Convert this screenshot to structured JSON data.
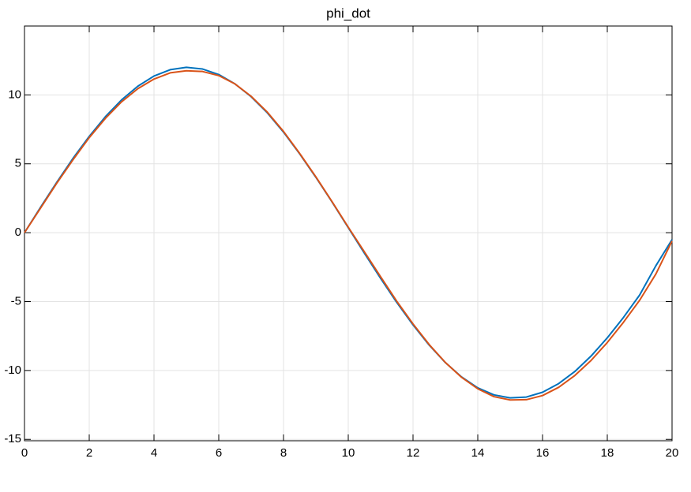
{
  "chart_data": {
    "type": "line",
    "title": "phi_dot",
    "x": [
      0,
      0.5,
      1,
      1.5,
      2,
      2.5,
      3,
      3.5,
      4,
      4.5,
      5,
      5.5,
      6,
      6.5,
      7,
      7.5,
      8,
      8.5,
      9,
      9.5,
      10,
      10.5,
      11,
      11.5,
      12,
      12.5,
      13,
      13.5,
      14,
      14.5,
      15,
      15.5,
      16,
      16.5,
      17,
      17.5,
      18,
      18.5,
      19,
      19.5,
      20
    ],
    "series": [
      {
        "color": "#0072bd",
        "values": [
          0,
          1.86,
          3.67,
          5.4,
          6.99,
          8.42,
          9.64,
          10.63,
          11.37,
          11.83,
          12.0,
          11.88,
          11.48,
          10.8,
          9.87,
          8.7,
          7.3,
          5.72,
          4.02,
          2.23,
          0.37,
          -1.49,
          -3.32,
          -5.07,
          -6.69,
          -8.16,
          -9.43,
          -10.47,
          -11.26,
          -11.77,
          -11.99,
          -11.93,
          -11.58,
          -10.95,
          -10.07,
          -8.95,
          -7.63,
          -6.15,
          -4.52,
          -2.4,
          -0.5
        ]
      },
      {
        "color": "#d95319",
        "values": [
          0,
          1.8,
          3.6,
          5.3,
          6.9,
          8.3,
          9.5,
          10.45,
          11.15,
          11.6,
          11.75,
          11.7,
          11.4,
          10.8,
          9.9,
          8.75,
          7.35,
          5.75,
          4.05,
          2.25,
          0.4,
          -1.4,
          -3.2,
          -4.98,
          -6.62,
          -8.12,
          -9.42,
          -10.5,
          -11.33,
          -11.9,
          -12.14,
          -12.12,
          -11.82,
          -11.22,
          -10.36,
          -9.27,
          -7.97,
          -6.5,
          -4.9,
          -3.0,
          -0.6
        ]
      }
    ],
    "xlim": [
      0,
      20
    ],
    "xticks": [
      0,
      2,
      4,
      6,
      8,
      10,
      12,
      14,
      16,
      18,
      20
    ],
    "ylim": [
      -15.1,
      15
    ],
    "yticks": [
      -15,
      -10,
      -5,
      0,
      5,
      10
    ],
    "grid": true
  }
}
